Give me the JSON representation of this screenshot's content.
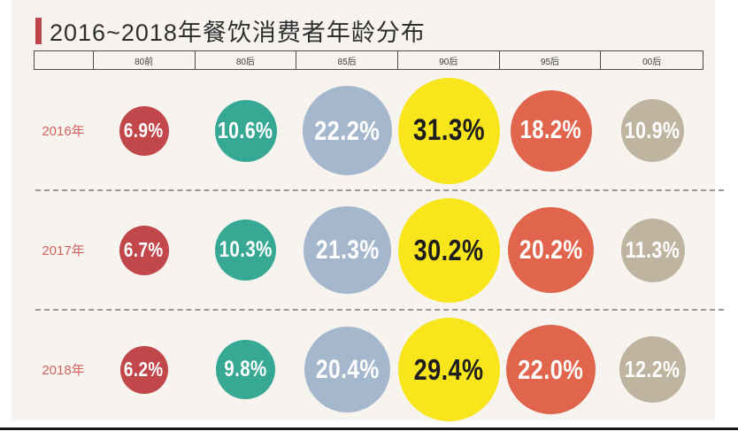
{
  "title": "2016~2018年餐饮消费者年龄分布",
  "chart_data": {
    "type": "bubble",
    "title": "2016~2018年餐饮消费者年龄分布",
    "categories": [
      "80前",
      "80后",
      "85后",
      "90后",
      "95后",
      "00后"
    ],
    "rows": [
      {
        "label": "2016年",
        "values": [
          6.9,
          10.6,
          22.2,
          31.3,
          18.2,
          10.9
        ]
      },
      {
        "label": "2017年",
        "values": [
          6.7,
          10.3,
          21.3,
          30.2,
          20.2,
          11.3
        ]
      },
      {
        "label": "2018年",
        "values": [
          6.2,
          9.8,
          20.4,
          29.4,
          22.0,
          12.2
        ]
      }
    ],
    "unit": "%",
    "column_colors": [
      "#c2474b",
      "#36a893",
      "#a4b7cc",
      "#f8e51b",
      "#e0654c",
      "#bfb49f"
    ],
    "value_text_colors": [
      "#ffffff",
      "#ffffff",
      "#ffffff",
      "#1d1d1d",
      "#ffffff",
      "#ffffff"
    ],
    "row_label_color": "#d2625e",
    "accent_color": "#c0464d",
    "background_color": "#f7f4f0",
    "legend_position": "none",
    "grid": "dashed-row-separators"
  }
}
